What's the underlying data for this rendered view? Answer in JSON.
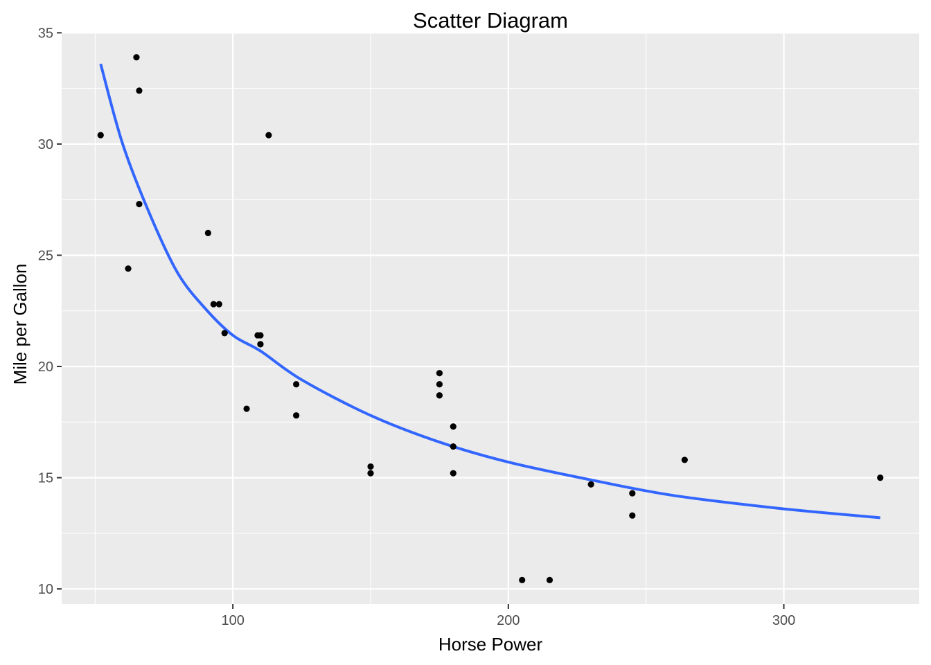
{
  "chart_data": {
    "type": "scatter",
    "title": "Scatter Diagram",
    "xlabel": "Horse Power",
    "ylabel": "Mile per Gallon",
    "xlim": [
      37.85,
      349.15
    ],
    "ylim": [
      9.32,
      34.98
    ],
    "x_ticks": [
      100,
      200,
      300
    ],
    "y_ticks": [
      10,
      15,
      20,
      25,
      30,
      35
    ],
    "grid": true,
    "legend": "none",
    "colors": {
      "panel_background": "#EBEBEB",
      "grid": "#FFFFFF",
      "points": "#000000",
      "trend": "#3366FF",
      "tick_text": "#4D4D4D"
    },
    "points": [
      {
        "x": 110,
        "y": 21.0
      },
      {
        "x": 110,
        "y": 21.0
      },
      {
        "x": 93,
        "y": 22.8
      },
      {
        "x": 110,
        "y": 21.4
      },
      {
        "x": 175,
        "y": 18.7
      },
      {
        "x": 105,
        "y": 18.1
      },
      {
        "x": 245,
        "y": 14.3
      },
      {
        "x": 62,
        "y": 24.4
      },
      {
        "x": 95,
        "y": 22.8
      },
      {
        "x": 123,
        "y": 19.2
      },
      {
        "x": 123,
        "y": 17.8
      },
      {
        "x": 180,
        "y": 16.4
      },
      {
        "x": 180,
        "y": 17.3
      },
      {
        "x": 180,
        "y": 15.2
      },
      {
        "x": 205,
        "y": 10.4
      },
      {
        "x": 215,
        "y": 10.4
      },
      {
        "x": 230,
        "y": 14.7
      },
      {
        "x": 66,
        "y": 32.4
      },
      {
        "x": 52,
        "y": 30.4
      },
      {
        "x": 65,
        "y": 33.9
      },
      {
        "x": 97,
        "y": 21.5
      },
      {
        "x": 150,
        "y": 15.5
      },
      {
        "x": 150,
        "y": 15.2
      },
      {
        "x": 245,
        "y": 13.3
      },
      {
        "x": 175,
        "y": 19.2
      },
      {
        "x": 66,
        "y": 27.3
      },
      {
        "x": 91,
        "y": 26.0
      },
      {
        "x": 113,
        "y": 30.4
      },
      {
        "x": 264,
        "y": 15.8
      },
      {
        "x": 175,
        "y": 19.7
      },
      {
        "x": 335,
        "y": 15.0
      },
      {
        "x": 109,
        "y": 21.4
      }
    ],
    "trend_line": {
      "x": [
        52,
        60,
        70,
        80,
        90,
        100,
        110,
        125,
        150,
        175,
        200,
        230,
        260,
        300,
        335
      ],
      "y": [
        33.6,
        30.0,
        26.8,
        24.2,
        22.6,
        21.4,
        20.7,
        19.4,
        17.8,
        16.6,
        15.7,
        14.9,
        14.2,
        13.6,
        13.2
      ]
    }
  }
}
